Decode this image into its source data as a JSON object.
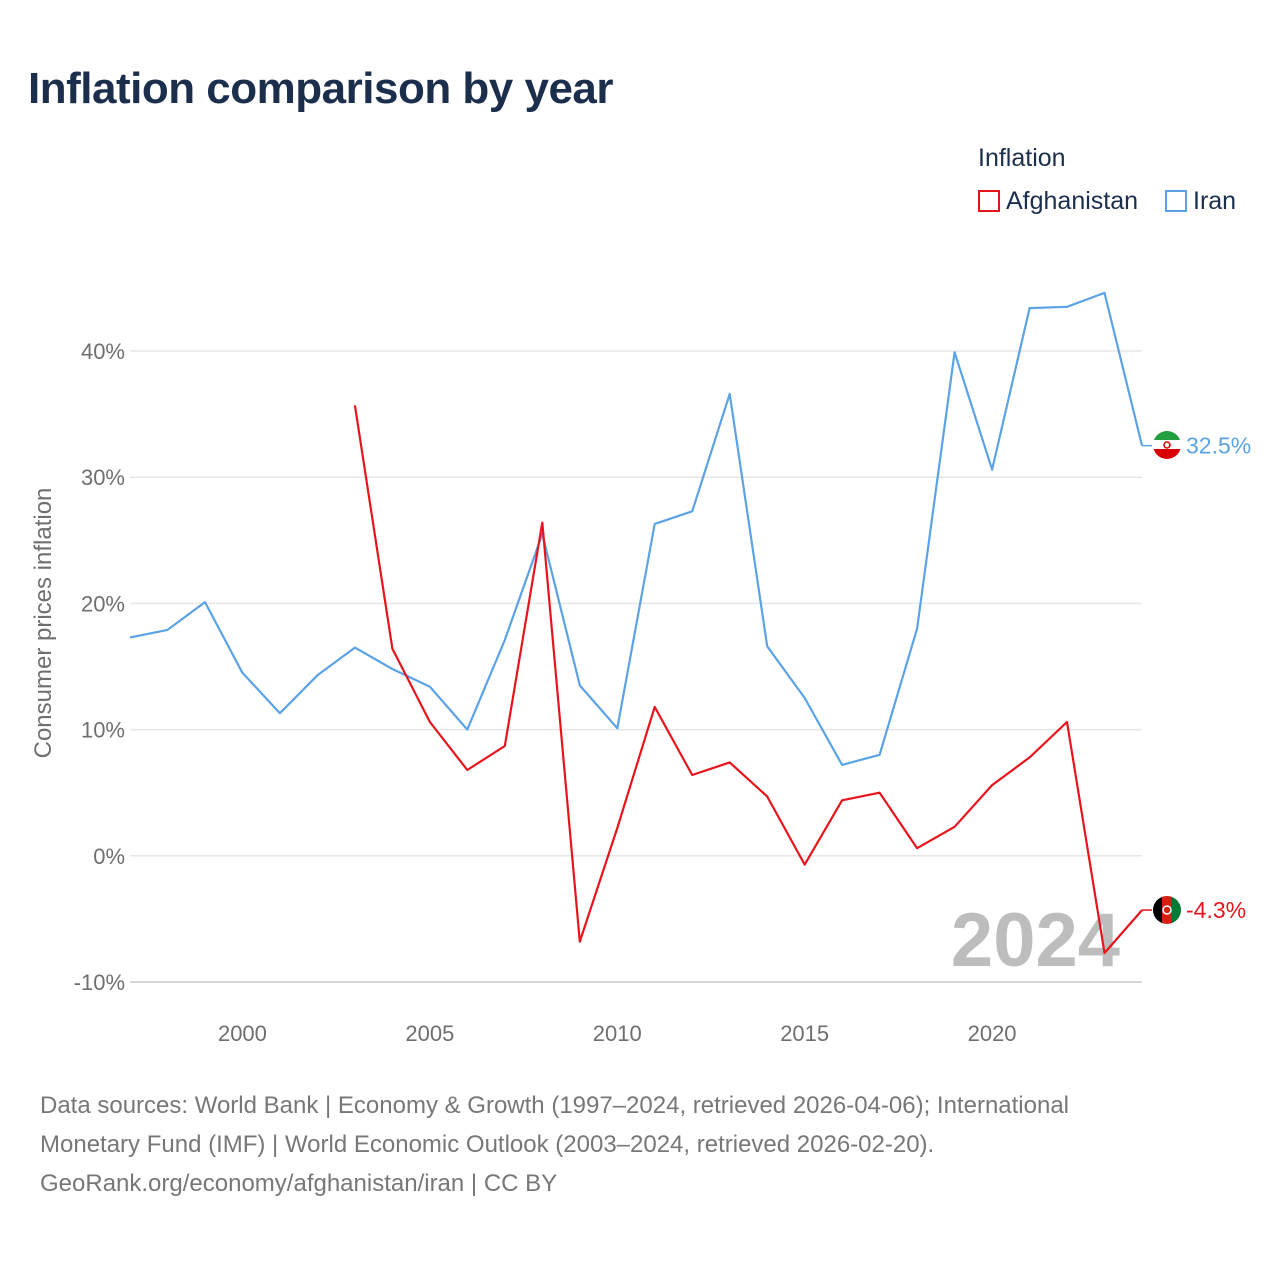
{
  "header": {
    "title": "Inflation comparison by year"
  },
  "legend": {
    "title": "Inflation",
    "items": [
      {
        "label": "Afghanistan",
        "color": "#e8141c"
      },
      {
        "label": "Iran",
        "color": "#5ba3e6"
      }
    ]
  },
  "chart_data": {
    "type": "line",
    "title": "Inflation comparison by year",
    "xlabel": "",
    "ylabel": "Consumer prices inflation",
    "xlim": [
      1997,
      2024
    ],
    "ylim": [
      -10,
      45
    ],
    "x_ticks": [
      2000,
      2005,
      2010,
      2015,
      2020
    ],
    "y_ticks": [
      -10,
      0,
      10,
      20,
      30,
      40
    ],
    "y_tick_labels": [
      "-10%",
      "0%",
      "10%",
      "20%",
      "30%",
      "40%"
    ],
    "grid": true,
    "year_watermark": "2024",
    "series": [
      {
        "name": "Afghanistan",
        "color": "#e8141c",
        "x": [
          2003,
          2004,
          2005,
          2006,
          2007,
          2008,
          2009,
          2010,
          2011,
          2012,
          2013,
          2014,
          2015,
          2016,
          2017,
          2018,
          2019,
          2020,
          2021,
          2022,
          2023,
          2024
        ],
        "values": [
          35.7,
          16.4,
          10.6,
          6.8,
          8.7,
          26.4,
          -6.8,
          2.2,
          11.8,
          6.4,
          7.4,
          4.7,
          -0.7,
          4.4,
          5.0,
          0.6,
          2.3,
          5.6,
          7.8,
          10.6,
          -7.7,
          -4.3
        ],
        "end_label": "-4.3%"
      },
      {
        "name": "Iran",
        "color": "#5ba3e6",
        "x": [
          1997,
          1998,
          1999,
          2000,
          2001,
          2002,
          2003,
          2004,
          2005,
          2006,
          2007,
          2008,
          2009,
          2010,
          2011,
          2012,
          2013,
          2014,
          2015,
          2016,
          2017,
          2018,
          2019,
          2020,
          2021,
          2022,
          2023,
          2024
        ],
        "values": [
          17.3,
          17.9,
          20.1,
          14.5,
          11.3,
          14.3,
          16.5,
          14.8,
          13.4,
          10.0,
          17.1,
          25.5,
          13.5,
          10.1,
          26.3,
          27.3,
          36.6,
          16.6,
          12.5,
          7.2,
          8.0,
          18.0,
          39.9,
          30.6,
          43.4,
          43.5,
          44.6,
          32.5
        ],
        "end_label": "32.5%"
      }
    ]
  },
  "footer": {
    "sources_line1": "Data sources: World Bank | Economy & Growth (1997–2024, retrieved 2026-04-06); International",
    "sources_line2": "Monetary Fund (IMF) | World Economic Outlook (2003–2024, retrieved 2026-02-20).",
    "sources_line3": "GeoRank.org/economy/afghanistan/iran | CC BY"
  }
}
